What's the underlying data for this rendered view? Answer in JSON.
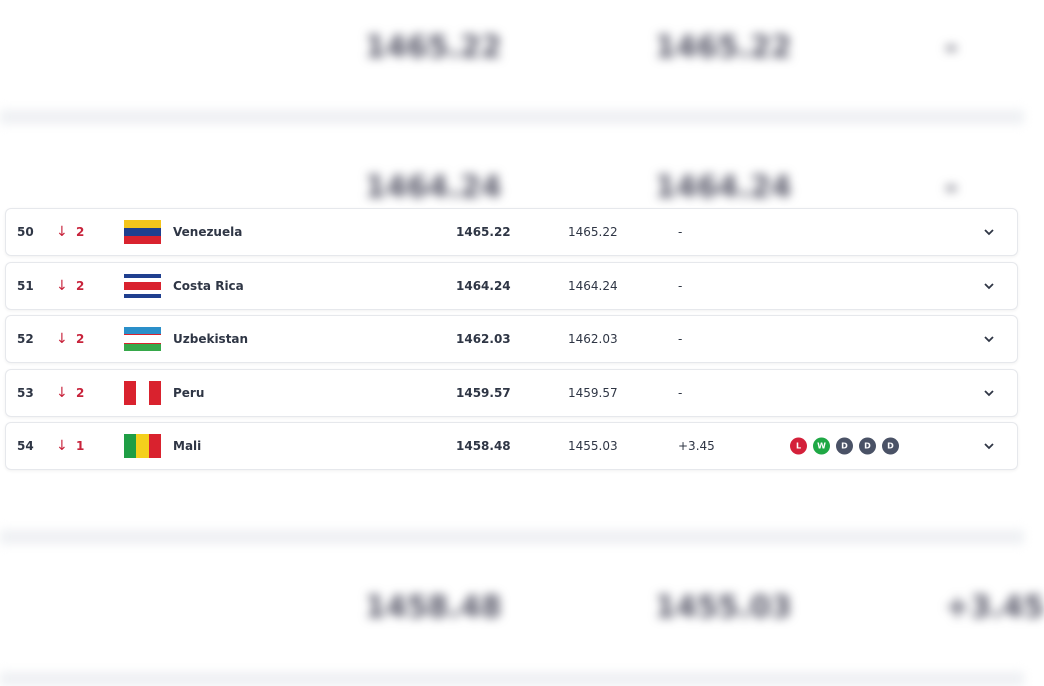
{
  "background_rows": [
    {
      "points": "1465.22",
      "previous": "1465.22",
      "diff": "-"
    },
    {
      "points": "1464.24",
      "previous": "1464.24",
      "diff": "-"
    },
    {
      "points": "1458.48",
      "previous": "1455.03",
      "diff": "+3.45"
    }
  ],
  "rows": [
    {
      "rank": "50",
      "change": "2",
      "name": "Venezuela",
      "points": "1465.22",
      "previous": "1465.22",
      "diff": "-",
      "form": []
    },
    {
      "rank": "51",
      "change": "2",
      "name": "Costa Rica",
      "points": "1464.24",
      "previous": "1464.24",
      "diff": "-",
      "form": []
    },
    {
      "rank": "52",
      "change": "2",
      "name": "Uzbekistan",
      "points": "1462.03",
      "previous": "1462.03",
      "diff": "-",
      "form": []
    },
    {
      "rank": "53",
      "change": "2",
      "name": "Peru",
      "points": "1459.57",
      "previous": "1459.57",
      "diff": "-",
      "form": []
    },
    {
      "rank": "54",
      "change": "1",
      "name": "Mali",
      "points": "1458.48",
      "previous": "1455.03",
      "diff": "+3.45",
      "form": [
        "L",
        "W",
        "D",
        "D",
        "D"
      ]
    }
  ],
  "colors": {
    "down": "#c8233b",
    "loss": "#d4203a",
    "win": "#1fa845",
    "draw": "#4a5266"
  }
}
